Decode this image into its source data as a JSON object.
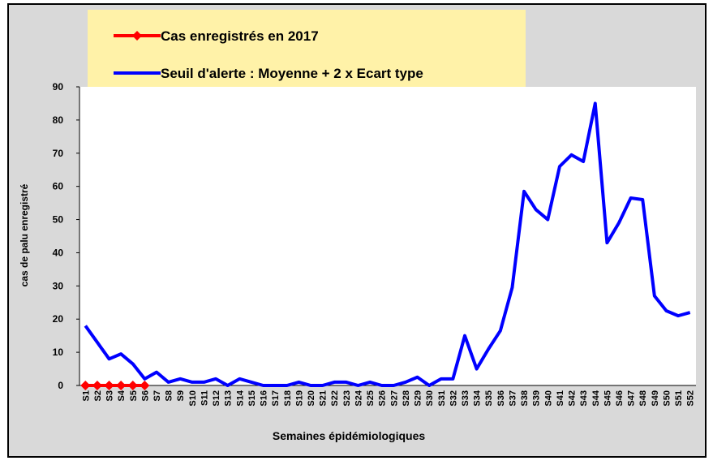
{
  "chart_data": {
    "type": "line",
    "ylabel": "cas de palu enregistré",
    "xlabel": "Semaines épidémiologiques",
    "categories": [
      "S1",
      "S2",
      "S3",
      "S4",
      "S5",
      "S6",
      "S7",
      "S8",
      "S9",
      "S10",
      "S11",
      "S12",
      "S13",
      "S14",
      "S15",
      "S16",
      "S17",
      "S18",
      "S19",
      "S20",
      "S21",
      "S22",
      "S23",
      "S24",
      "S25",
      "S26",
      "S27",
      "S28",
      "S29",
      "S30",
      "S31",
      "S32",
      "S33",
      "S34",
      "S35",
      "S36",
      "S37",
      "S38",
      "S39",
      "S40",
      "S41",
      "S42",
      "S43",
      "S44",
      "S45",
      "S46",
      "S47",
      "S48",
      "S49",
      "S50",
      "S51",
      "S52"
    ],
    "series": [
      {
        "name": "Cas enregistrés en 2017",
        "color": "#ff0000",
        "marker": "diamond",
        "values": [
          0,
          0,
          0,
          0,
          0,
          0,
          null,
          null,
          null,
          null,
          null,
          null,
          null,
          null,
          null,
          null,
          null,
          null,
          null,
          null,
          null,
          null,
          null,
          null,
          null,
          null,
          null,
          null,
          null,
          null,
          null,
          null,
          null,
          null,
          null,
          null,
          null,
          null,
          null,
          null,
          null,
          null,
          null,
          null,
          null,
          null,
          null,
          null,
          null,
          null,
          null,
          null
        ]
      },
      {
        "name": "Seuil d'alerte : Moyenne + 2 x Ecart type",
        "color": "#0000ff",
        "marker": "none",
        "values": [
          18,
          13,
          8,
          9.5,
          6.5,
          2,
          4,
          1,
          2,
          1,
          1,
          2,
          0,
          2,
          1,
          0,
          0,
          0,
          1,
          0,
          0,
          1,
          1,
          0,
          1,
          0,
          0,
          1,
          2.5,
          0,
          2,
          2,
          15,
          5,
          11,
          16.5,
          29.5,
          58.5,
          53,
          50,
          66,
          69.5,
          67.5,
          85,
          43,
          49,
          56.5,
          56,
          27,
          22.5,
          21,
          22
        ]
      }
    ],
    "ylim": [
      0,
      90
    ],
    "yticks": [
      0,
      10,
      20,
      30,
      40,
      50,
      60,
      70,
      80,
      90
    ],
    "grid": false
  }
}
